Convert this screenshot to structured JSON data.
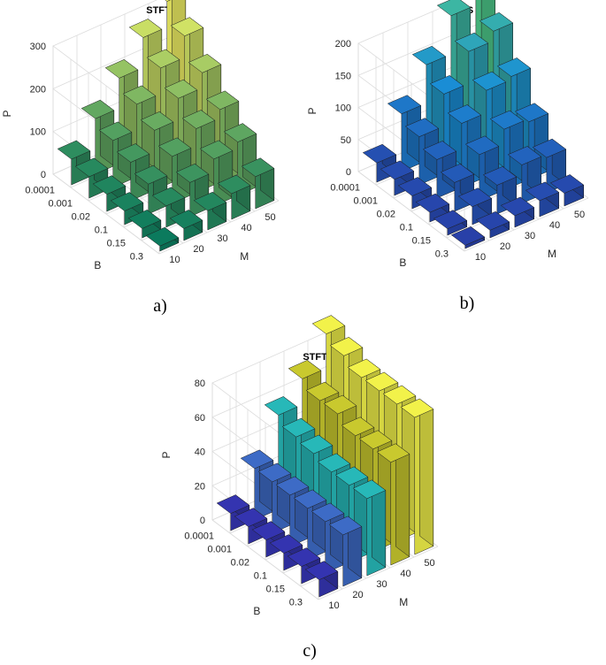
{
  "chart_data": [
    {
      "type": "bar3d",
      "title": "STFT",
      "caption": "a)",
      "xlabel": "M",
      "ylabel": "B",
      "zlabel": "P",
      "M": [
        "10",
        "20",
        "30",
        "40",
        "50"
      ],
      "B": [
        "0.0001",
        "0.001",
        "0.02",
        "0.1",
        "0.15",
        "0.3"
      ],
      "zlim": [
        0,
        300
      ],
      "zticks": [
        0,
        100,
        200,
        300
      ],
      "values": [
        [
          60,
          130,
          200,
          270,
          330
        ],
        [
          50,
          110,
          170,
          230,
          280
        ],
        [
          40,
          90,
          140,
          190,
          225
        ],
        [
          32,
          70,
          110,
          150,
          170
        ],
        [
          22,
          50,
          80,
          110,
          125
        ],
        [
          12,
          28,
          45,
          60,
          75
        ]
      ],
      "colormap": "summer"
    },
    {
      "type": "bar3d",
      "title": "TS",
      "caption": "b)",
      "xlabel": "M",
      "ylabel": "B",
      "zlabel": "P",
      "M": [
        "10",
        "20",
        "30",
        "40",
        "50"
      ],
      "B": [
        "0.0001",
        "0.001",
        "0.02",
        "0.1",
        "0.15",
        "0.3"
      ],
      "zlim": [
        0,
        200
      ],
      "zticks": [
        0,
        50,
        100,
        150,
        200
      ],
      "values": [
        [
          30,
          90,
          150,
          210,
          250
        ],
        [
          25,
          75,
          125,
          175,
          190
        ],
        [
          20,
          60,
          100,
          135,
          140
        ],
        [
          15,
          45,
          72,
          95,
          90
        ],
        [
          10,
          28,
          45,
          60,
          55
        ],
        [
          5,
          12,
          18,
          25,
          20
        ]
      ],
      "colormap": "winter"
    },
    {
      "type": "bar3d",
      "title": "STFT - TS",
      "caption": "c)",
      "xlabel": "M",
      "ylabel": "B",
      "zlabel": "P",
      "M": [
        "10",
        "20",
        "30",
        "40",
        "50"
      ],
      "B": [
        "0.0001",
        "0.001",
        "0.02",
        "0.1",
        "0.15",
        "0.3"
      ],
      "zlim": [
        0,
        80
      ],
      "zticks": [
        0,
        20,
        40,
        60,
        80
      ],
      "values": [
        [
          10,
          30,
          55,
          70,
          90
        ],
        [
          10,
          30,
          50,
          65,
          85
        ],
        [
          10,
          30,
          48,
          65,
          80
        ],
        [
          10,
          30,
          45,
          60,
          80
        ],
        [
          10,
          30,
          45,
          60,
          80
        ],
        [
          10,
          30,
          45,
          60,
          80
        ]
      ],
      "colormap": "parula-columns"
    }
  ],
  "colors": {
    "summer_low": "#0b7a5d",
    "summer_high": "#f5f567",
    "winter_low": "#2840a8",
    "winter_mid": "#1a8fd6",
    "winter_high": "#4dc98a",
    "parula": [
      "#3434b0",
      "#3d6bc6",
      "#27b8b8",
      "#23cfc4",
      "#c9c92e",
      "#f2f24a"
    ]
  }
}
